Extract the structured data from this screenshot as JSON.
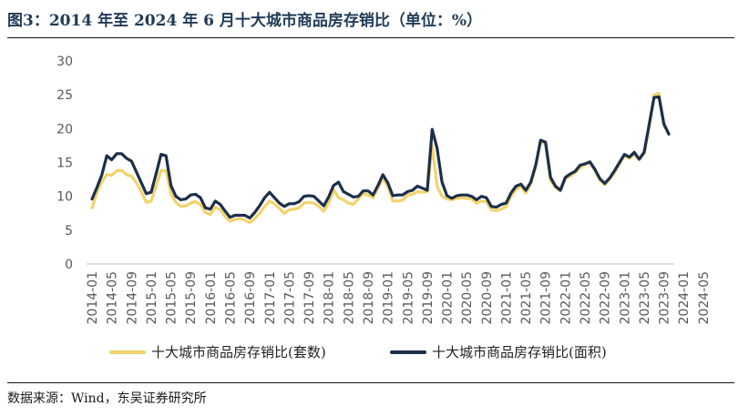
{
  "title": "图3：2014 年至 2024 年 6 月十大城市商品房存销比（单位：%）",
  "source": "数据来源：Wind，东吴证券研究所",
  "colors": {
    "series1": "#f2d36b",
    "series2": "#1c2f4a",
    "title": "#1f3b57"
  },
  "chart_data": {
    "type": "line",
    "title": "",
    "xlabel": "",
    "ylabel": "",
    "ylim": [
      0,
      30
    ],
    "yticks": [
      "0",
      "5",
      "10",
      "15",
      "20",
      "25",
      "30"
    ],
    "xtick_labels": [
      "2014-01",
      "2014-05",
      "2014-09",
      "2015-01",
      "2015-05",
      "2015-09",
      "2016-01",
      "2016-05",
      "2016-09",
      "2017-01",
      "2017-05",
      "2017-09",
      "2018-01",
      "2018-05",
      "2018-09",
      "2019-01",
      "2019-05",
      "2019-09",
      "2020-01",
      "2020-05",
      "2020-09",
      "2021-01",
      "2021-05",
      "2021-09",
      "2022-01",
      "2022-05",
      "2022-09",
      "2023-01",
      "2023-05",
      "2023-09",
      "2024-01",
      "2024-05"
    ],
    "grid": false,
    "legend_position": "bottom",
    "series": [
      {
        "name": "十大城市商品房存销比(套数)",
        "values": [
          8.3,
          10.5,
          12.2,
          13.2,
          13.1,
          13.8,
          13.8,
          13.2,
          13.0,
          12.0,
          10.7,
          9.1,
          9.3,
          11.5,
          13.8,
          13.8,
          10.4,
          9.1,
          8.5,
          8.6,
          9.0,
          9.2,
          8.8,
          7.6,
          7.3,
          8.4,
          8.0,
          7.0,
          6.3,
          6.6,
          6.7,
          6.5,
          6.1,
          6.7,
          7.5,
          8.5,
          9.3,
          8.9,
          8.2,
          7.5,
          8.0,
          8.1,
          8.3,
          9.0,
          9.1,
          9.0,
          8.5,
          7.8,
          9.0,
          11.0,
          9.8,
          9.5,
          9.0,
          8.8,
          9.6,
          10.4,
          10.2,
          9.8,
          11.2,
          12.6,
          11.5,
          9.3,
          9.3,
          9.4,
          10.2,
          10.3,
          10.7,
          10.6,
          10.7,
          17.5,
          11.5,
          10.0,
          9.6,
          9.5,
          9.7,
          9.8,
          9.7,
          9.6,
          9.0,
          9.3,
          9.2,
          8.0,
          7.9,
          8.1,
          8.5,
          10.0,
          11.0,
          11.5,
          10.5,
          11.8,
          14.4,
          18.1,
          17.7,
          12.3,
          11.3,
          10.8,
          12.6,
          13.0,
          13.5,
          14.2,
          14.7,
          15.0,
          13.8,
          12.4,
          11.7,
          12.5,
          13.5,
          14.8,
          16.0,
          15.6,
          16.2,
          15.4,
          16.3,
          20.2,
          25.0,
          25.2,
          20.5,
          19.2
        ]
      },
      {
        "name": "十大城市商品房存销比(面积)",
        "values": [
          9.6,
          11.3,
          13.2,
          16.0,
          15.4,
          16.3,
          16.3,
          15.6,
          15.2,
          13.6,
          12.0,
          10.4,
          10.6,
          13.3,
          16.2,
          16.0,
          11.6,
          10.0,
          9.5,
          9.6,
          10.2,
          10.3,
          9.8,
          8.3,
          8.1,
          9.3,
          8.8,
          7.8,
          6.9,
          7.2,
          7.2,
          7.2,
          6.8,
          7.6,
          8.6,
          9.8,
          10.6,
          9.8,
          9.0,
          8.5,
          8.9,
          8.9,
          9.2,
          10.0,
          10.1,
          10.0,
          9.3,
          8.6,
          9.9,
          11.6,
          12.1,
          10.7,
          10.3,
          9.9,
          10.0,
          10.8,
          10.8,
          10.2,
          11.6,
          13.2,
          12.0,
          10.1,
          10.2,
          10.2,
          10.7,
          10.9,
          11.5,
          11.2,
          10.9,
          19.9,
          17.1,
          12.1,
          10.1,
          9.7,
          10.1,
          10.2,
          10.2,
          10.0,
          9.5,
          10.0,
          9.8,
          8.5,
          8.4,
          8.8,
          9.0,
          10.5,
          11.5,
          11.8,
          10.9,
          12.1,
          14.6,
          18.3,
          18.0,
          12.8,
          11.5,
          10.9,
          12.8,
          13.3,
          13.7,
          14.6,
          14.8,
          15.1,
          14.0,
          12.6,
          11.9,
          12.7,
          13.8,
          15.0,
          16.2,
          15.8,
          16.5,
          15.5,
          16.5,
          20.6,
          24.6,
          24.7,
          20.7,
          19.2
        ]
      }
    ]
  }
}
